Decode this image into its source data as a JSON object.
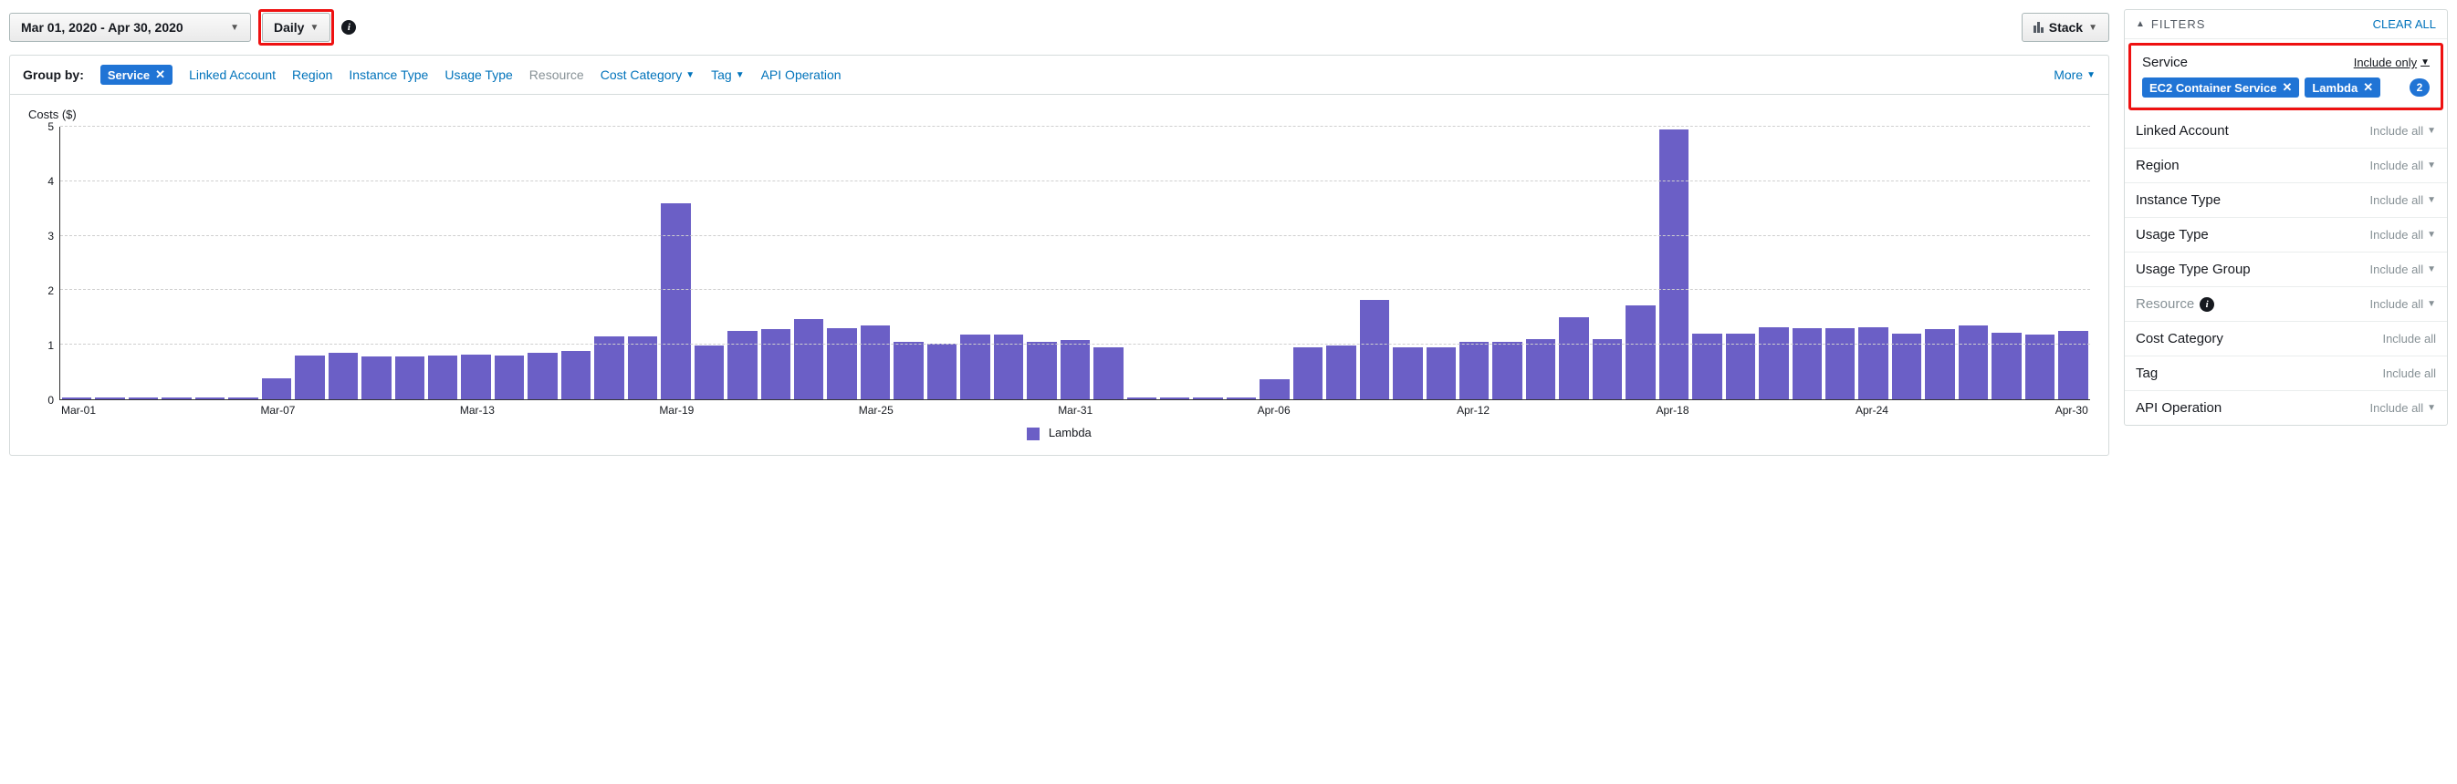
{
  "toolbar": {
    "date_range": "Mar 01, 2020 - Apr 30, 2020",
    "granularity": "Daily",
    "stack_label": "Stack"
  },
  "groupby": {
    "label": "Group by:",
    "active_chip": "Service",
    "items": [
      {
        "label": "Linked Account",
        "type": "link"
      },
      {
        "label": "Region",
        "type": "link"
      },
      {
        "label": "Instance Type",
        "type": "link"
      },
      {
        "label": "Usage Type",
        "type": "link"
      },
      {
        "label": "Resource",
        "type": "disabled"
      },
      {
        "label": "Cost Category",
        "type": "dropdown"
      },
      {
        "label": "Tag",
        "type": "dropdown"
      },
      {
        "label": "API Operation",
        "type": "link"
      }
    ],
    "more": "More"
  },
  "chart": {
    "title": "Costs ($)",
    "ylim": [
      0,
      5
    ],
    "yticks": [
      0,
      1,
      2,
      3,
      4,
      5
    ],
    "grid_color": "#cfcfcf",
    "bar_color": "#6b5fc6",
    "background": "#ffffff",
    "legend_label": "Lambda",
    "categories": [
      "Mar-01",
      "Mar-02",
      "Mar-03",
      "Mar-04",
      "Mar-05",
      "Mar-06",
      "Mar-07",
      "Mar-08",
      "Mar-09",
      "Mar-10",
      "Mar-11",
      "Mar-12",
      "Mar-13",
      "Mar-14",
      "Mar-15",
      "Mar-16",
      "Mar-17",
      "Mar-18",
      "Mar-19",
      "Mar-20",
      "Mar-21",
      "Mar-22",
      "Mar-23",
      "Mar-24",
      "Mar-25",
      "Mar-26",
      "Mar-27",
      "Mar-28",
      "Mar-29",
      "Mar-30",
      "Mar-31",
      "Apr-01",
      "Apr-02",
      "Apr-03",
      "Apr-04",
      "Apr-05",
      "Apr-06",
      "Apr-07",
      "Apr-08",
      "Apr-09",
      "Apr-10",
      "Apr-11",
      "Apr-12",
      "Apr-13",
      "Apr-14",
      "Apr-15",
      "Apr-16",
      "Apr-17",
      "Apr-18",
      "Apr-19",
      "Apr-20",
      "Apr-21",
      "Apr-22",
      "Apr-23",
      "Apr-24",
      "Apr-25",
      "Apr-26",
      "Apr-27",
      "Apr-28",
      "Apr-29",
      "Apr-30"
    ],
    "values": [
      0.04,
      0.04,
      0.04,
      0.04,
      0.04,
      0.04,
      0.38,
      0.8,
      0.85,
      0.78,
      0.78,
      0.8,
      0.82,
      0.8,
      0.85,
      0.88,
      1.15,
      1.15,
      3.6,
      0.98,
      1.25,
      1.28,
      1.48,
      1.3,
      1.35,
      1.05,
      1.02,
      1.18,
      1.18,
      1.05,
      1.08,
      0.96,
      0.04,
      0.04,
      0.04,
      0.04,
      0.36,
      0.95,
      0.98,
      1.82,
      0.95,
      0.95,
      1.05,
      1.05,
      1.1,
      1.5,
      1.1,
      1.72,
      4.95,
      1.2,
      1.2,
      1.32,
      1.3,
      1.3,
      1.32,
      1.2,
      1.28,
      1.35,
      1.22,
      1.18,
      1.25
    ],
    "xtick_every": 6
  },
  "filters": {
    "title": "FILTERS",
    "clear_all": "CLEAR ALL",
    "service": {
      "name": "Service",
      "mode": "Include only",
      "chips": [
        "EC2 Container Service",
        "Lambda"
      ],
      "count": "2"
    },
    "rows": [
      {
        "name": "Linked Account",
        "mode": "Include all",
        "caret": true
      },
      {
        "name": "Region",
        "mode": "Include all",
        "caret": true
      },
      {
        "name": "Instance Type",
        "mode": "Include all",
        "caret": true
      },
      {
        "name": "Usage Type",
        "mode": "Include all",
        "caret": true
      },
      {
        "name": "Usage Type Group",
        "mode": "Include all",
        "caret": true
      },
      {
        "name": "Resource",
        "mode": "Include all",
        "caret": true,
        "disabled": true,
        "info": true
      },
      {
        "name": "Cost Category",
        "mode": "Include all",
        "caret": false
      },
      {
        "name": "Tag",
        "mode": "Include all",
        "caret": false
      },
      {
        "name": "API Operation",
        "mode": "Include all",
        "caret": true
      }
    ]
  }
}
